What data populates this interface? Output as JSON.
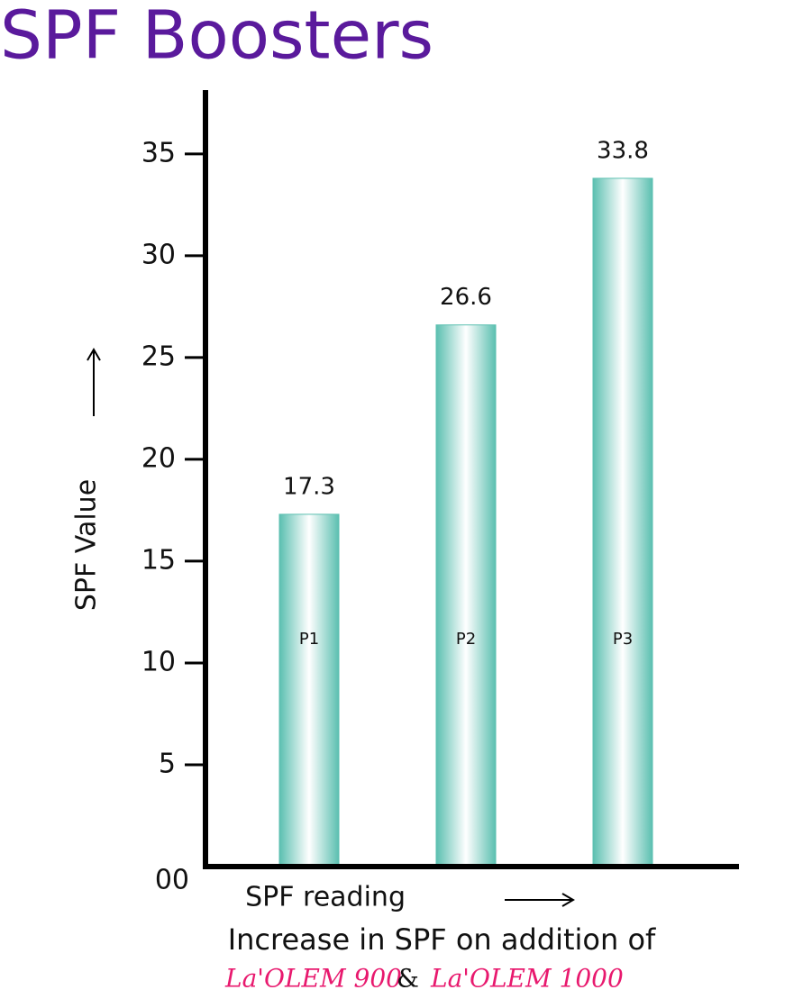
{
  "chart_data": {
    "type": "bar",
    "title": "SPF Boosters",
    "categories": [
      "P1",
      "P2",
      "P3"
    ],
    "values": [
      17.3,
      26.6,
      33.8
    ],
    "color": "#5bbfb0",
    "ylim": [
      0,
      38
    ],
    "yticks": [
      {
        "value": 0,
        "label": "00"
      },
      5,
      10,
      15,
      20,
      25,
      30,
      35
    ],
    "y_label": "SPF Value",
    "x_label": "SPF reading",
    "subtitle": "Increase in SPF on addition of",
    "products": [
      "La'OLEM 900",
      "&",
      "La'OLEM 1000"
    ]
  }
}
